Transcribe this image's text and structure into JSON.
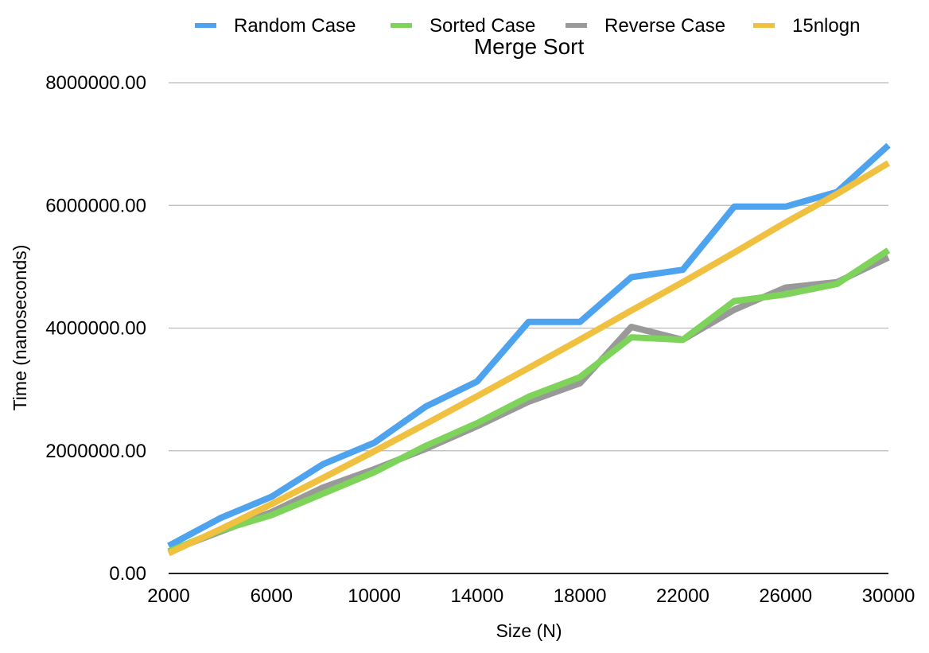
{
  "chart_data": {
    "type": "line",
    "title": "Merge Sort",
    "xlabel": "Size (N)",
    "ylabel": "Time (nanoseconds)",
    "x": [
      2000,
      4000,
      6000,
      8000,
      10000,
      12000,
      14000,
      16000,
      18000,
      20000,
      22000,
      24000,
      26000,
      28000,
      30000
    ],
    "xticks": [
      "2000",
      "6000",
      "10000",
      "14000",
      "18000",
      "22000",
      "26000",
      "30000"
    ],
    "xtick_values": [
      2000,
      6000,
      10000,
      14000,
      18000,
      22000,
      26000,
      30000
    ],
    "yticks": [
      "0.00",
      "2000000.00",
      "4000000.00",
      "6000000.00",
      "8000000.00"
    ],
    "ytick_values": [
      0,
      2000000,
      4000000,
      6000000,
      8000000
    ],
    "xlim": [
      2000,
      30000
    ],
    "ylim": [
      0,
      8000000
    ],
    "grid": "horizontal",
    "legend_position": "top",
    "series": [
      {
        "name": "Random Case",
        "color": "#4da3ee",
        "values": [
          450000,
          900000,
          1250000,
          1780000,
          2130000,
          2720000,
          3130000,
          4100000,
          4100000,
          4830000,
          4950000,
          5980000,
          5980000,
          6220000,
          6980000
        ]
      },
      {
        "name": "Sorted Case",
        "color": "#7ed35a",
        "values": [
          360000,
          700000,
          950000,
          1300000,
          1650000,
          2080000,
          2450000,
          2880000,
          3200000,
          3850000,
          3810000,
          4440000,
          4550000,
          4720000,
          5270000
        ]
      },
      {
        "name": "Reverse Case",
        "color": "#999999",
        "values": [
          360000,
          680000,
          1000000,
          1400000,
          1700000,
          2030000,
          2400000,
          2800000,
          3100000,
          4020000,
          3810000,
          4300000,
          4660000,
          4750000,
          5150000
        ]
      },
      {
        "name": "15nlogn",
        "color": "#f0c040",
        "values": [
          329000,
          718000,
          1131000,
          1556000,
          1993000,
          2438000,
          2890000,
          3349000,
          3812000,
          4287000,
          4750000,
          5230000,
          5722000,
          6187000,
          6690000
        ]
      }
    ]
  }
}
